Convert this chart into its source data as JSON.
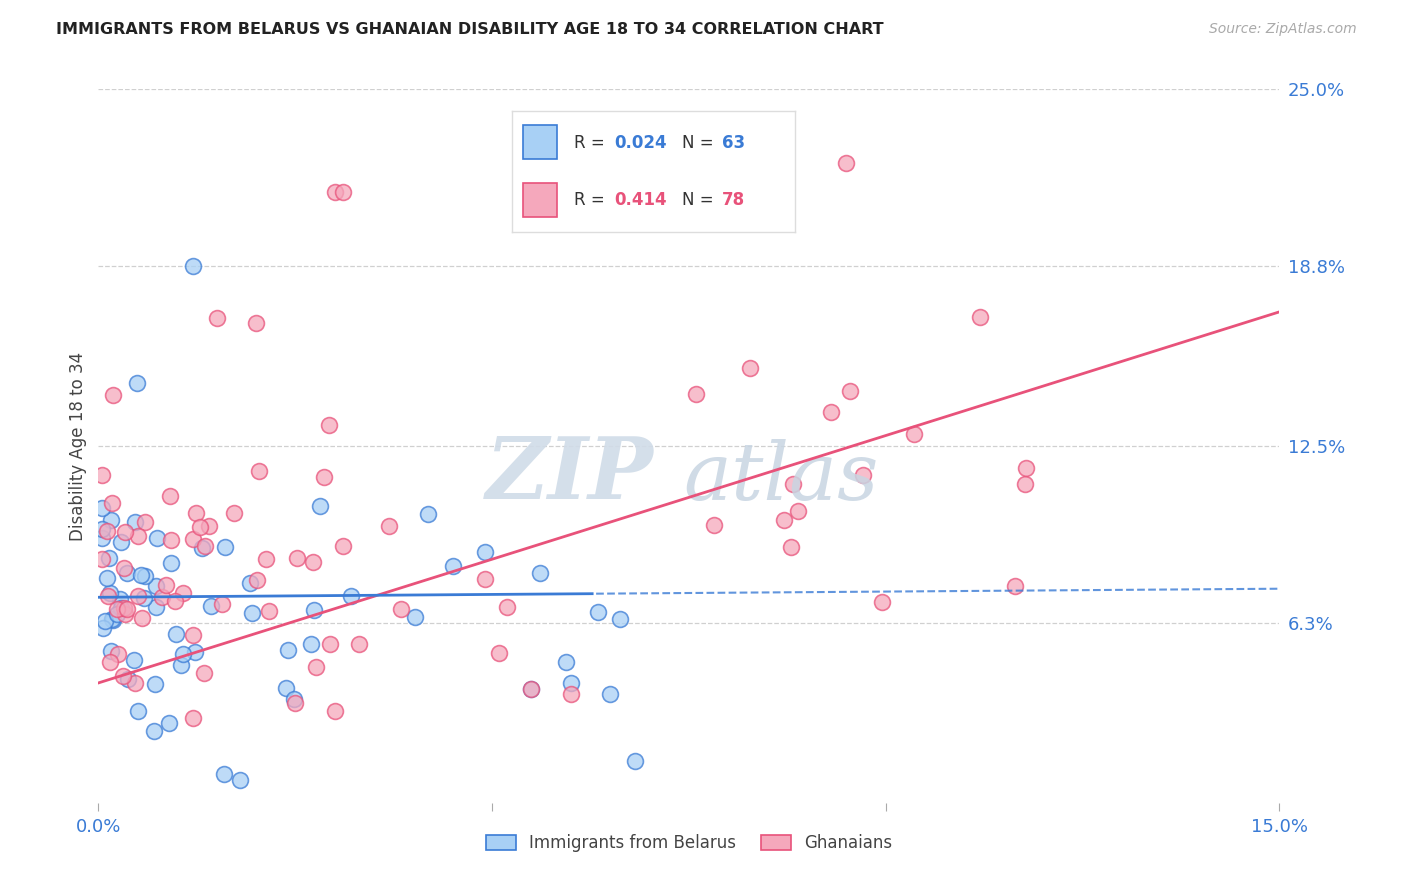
{
  "title": "IMMIGRANTS FROM BELARUS VS GHANAIAN DISABILITY AGE 18 TO 34 CORRELATION CHART",
  "source": "Source: ZipAtlas.com",
  "ylabel": "Disability Age 18 to 34",
  "x_min": 0.0,
  "x_max": 0.15,
  "y_min": 0.0,
  "y_max": 0.25,
  "y_ticks_right": [
    0.063,
    0.125,
    0.188,
    0.25
  ],
  "y_tick_labels_right": [
    "6.3%",
    "12.5%",
    "18.8%",
    "25.0%"
  ],
  "color_blue": "#A8D0F5",
  "color_pink": "#F5A8BC",
  "trendline_blue": "#3A7BD5",
  "trendline_pink": "#E8527A",
  "legend_r_blue": "0.024",
  "legend_n_blue": "63",
  "legend_r_pink": "0.414",
  "legend_n_pink": "78",
  "legend_label_blue": "Immigrants from Belarus",
  "legend_label_pink": "Ghanaians",
  "watermark_zip": "ZIP",
  "watermark_atlas": "atlas"
}
